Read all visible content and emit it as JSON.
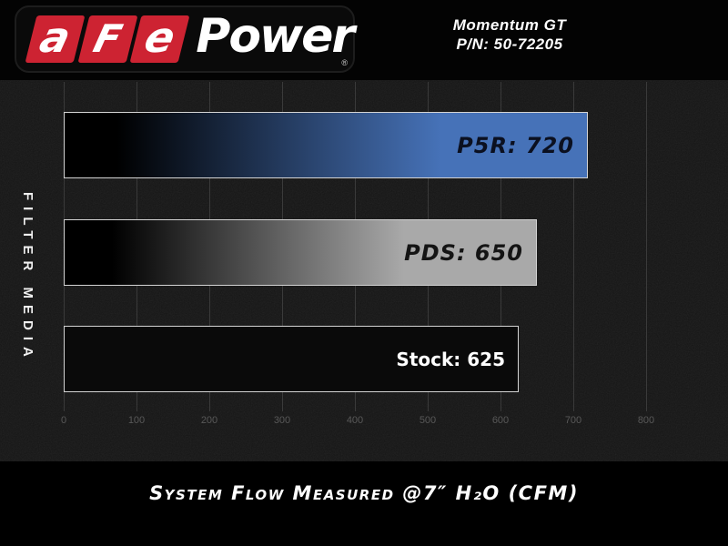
{
  "header": {
    "logo": {
      "letters": [
        "a",
        "F",
        "e"
      ],
      "word": "Power",
      "registered": "®",
      "block_color": "#cd2332"
    },
    "model": {
      "line1": "Momentum GT",
      "line2": "P/N: 50-72205"
    }
  },
  "chart_data": {
    "type": "bar",
    "orientation": "horizontal",
    "title": "",
    "ylabel": "FILTER MEDIA",
    "xlabel": "System Flow Measured @7″ H₂O (CFM)",
    "xlim": [
      0,
      800
    ],
    "x_ticks": [
      0,
      100,
      200,
      300,
      400,
      500,
      600,
      700,
      800
    ],
    "grid": true,
    "legend": "none",
    "categories": [
      "P5R",
      "PDS",
      "Stock"
    ],
    "values": [
      720,
      650,
      625
    ],
    "series": [
      {
        "name": "P5R",
        "value": 720,
        "label": "P5R: 720",
        "bar_color": "#4672b8",
        "bar_style": "gradient-black-to-color",
        "label_color": "#0b1020",
        "label_italic": true
      },
      {
        "name": "PDS",
        "value": 650,
        "label": "PDS: 650",
        "bar_color": "#a9a9a9",
        "bar_style": "gradient-black-to-color",
        "label_color": "#141414",
        "label_italic": true
      },
      {
        "name": "Stock",
        "value": 625,
        "label": "Stock: 625",
        "bar_color": "#0a0a0a",
        "bar_style": "solid",
        "label_color": "#ffffff",
        "label_italic": false
      }
    ],
    "colors": {
      "background": "#151515",
      "gridline": "#3a3a3a",
      "tick_text": "#585858",
      "bar_border": "#d4d4d4"
    }
  }
}
